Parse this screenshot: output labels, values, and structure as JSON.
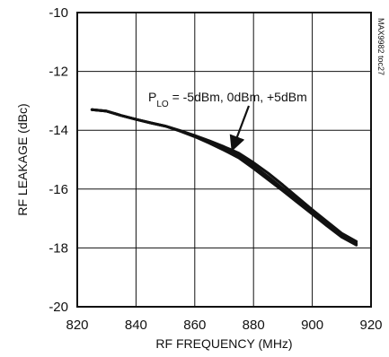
{
  "chart_data": {
    "type": "line",
    "title": "",
    "xlabel": "RF FREQUENCY (MHz)",
    "ylabel": "RF LEAKAGE (dBc)",
    "xlim": [
      820,
      920
    ],
    "ylim": [
      -20,
      -10
    ],
    "xticks": [
      820,
      840,
      860,
      880,
      900,
      920
    ],
    "yticks": [
      -20,
      -18,
      -16,
      -14,
      -12,
      -10
    ],
    "x_tick_labels": [
      "820",
      "840",
      "860",
      "880",
      "900",
      "920"
    ],
    "y_tick_labels": [
      "-20",
      "-18",
      "-16",
      "-14",
      "-12",
      "-10"
    ],
    "grid": true,
    "legend": "none",
    "line_color": "#111111",
    "series": [
      {
        "x": [
          825,
          830,
          835,
          840,
          845,
          850,
          855,
          860,
          865,
          870,
          875,
          880,
          885,
          890,
          895,
          900,
          905,
          910,
          915
        ],
        "values": [
          -13.3,
          -13.35,
          -13.5,
          -13.63,
          -13.75,
          -13.86,
          -14.02,
          -14.2,
          -14.4,
          -14.62,
          -14.86,
          -15.2,
          -15.58,
          -15.98,
          -16.38,
          -16.78,
          -17.18,
          -17.56,
          -17.84
        ]
      },
      {
        "x": [
          825,
          830,
          835,
          840,
          845,
          850,
          855,
          860,
          865,
          870,
          875,
          880,
          885,
          890,
          895,
          900,
          905,
          910,
          915
        ],
        "values": [
          -13.3,
          -13.35,
          -13.5,
          -13.63,
          -13.75,
          -13.86,
          -14.03,
          -14.22,
          -14.44,
          -14.68,
          -14.94,
          -15.3,
          -15.68,
          -16.06,
          -16.46,
          -16.85,
          -17.25,
          -17.63,
          -17.9
        ]
      },
      {
        "x": [
          825,
          830,
          835,
          840,
          845,
          850,
          855,
          860,
          865,
          870,
          875,
          880,
          885,
          890,
          895,
          900,
          905,
          910,
          915
        ],
        "values": [
          -13.3,
          -13.35,
          -13.5,
          -13.63,
          -13.75,
          -13.86,
          -14.01,
          -14.18,
          -14.36,
          -14.56,
          -14.78,
          -15.1,
          -15.46,
          -15.86,
          -16.28,
          -16.7,
          -17.1,
          -17.5,
          -17.78
        ]
      }
    ],
    "annotations": [
      {
        "prefix": "P",
        "subscript": "LO",
        "text": " = -5dBm, 0dBm, +5dBm",
        "arrow_target": [
          873,
          -14.6
        ]
      }
    ],
    "side_label": "MAX9982 toc27"
  }
}
